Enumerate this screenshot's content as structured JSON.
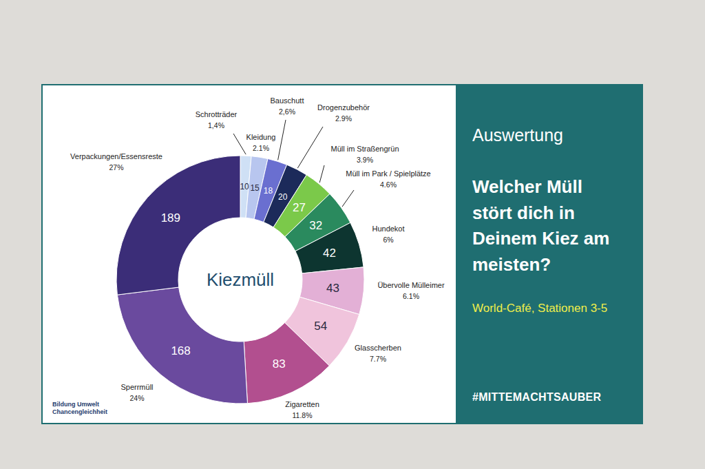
{
  "chart_data": {
    "type": "donut",
    "center_label": "Kiezmüll",
    "categories": [
      "Schrotträder",
      "Kleidung",
      "Bauschutt",
      "Drogenzubehör",
      "Müll im Straßengrün",
      "Müll im Park / Spielplätze",
      "Hundekot",
      "Übervolle Mülleimer",
      "Glasscherben",
      "Zigaretten",
      "Sperrmüll",
      "Verpackungen/Essensreste"
    ],
    "values": [
      10,
      15,
      18,
      20,
      27,
      32,
      42,
      43,
      54,
      83,
      168,
      189
    ],
    "percent": [
      1.4,
      2.1,
      2.6,
      2.9,
      3.9,
      4.6,
      6,
      6.1,
      7.7,
      11.8,
      24,
      27
    ],
    "percent_labels": [
      "1,4%",
      "2.1%",
      "2,6%",
      "2.9%",
      "3.9%",
      "4.6%",
      "6%",
      "6.1%",
      "7.7%",
      "11.8%",
      "24%",
      "27%"
    ],
    "colors": [
      "#cfe0f5",
      "#b8c6ef",
      "#6a6fd0",
      "#1c2a5a",
      "#7bc94a",
      "#2a8a5e",
      "#0d3530",
      "#e3b0d6",
      "#f0c4dc",
      "#b24f8f",
      "#6a4a9e",
      "#3b2d78"
    ],
    "data_labels": true
  },
  "panel": {
    "heading": "Auswertung",
    "question": "Welcher Müll stört dich in Deinem Kiez am meisten?",
    "event": "World-Café, Stationen 3-5",
    "hashtag": "#MITTEMACHTSAUBER"
  },
  "footer": [
    "Bildung Umwelt",
    "Chancengleichheit"
  ]
}
